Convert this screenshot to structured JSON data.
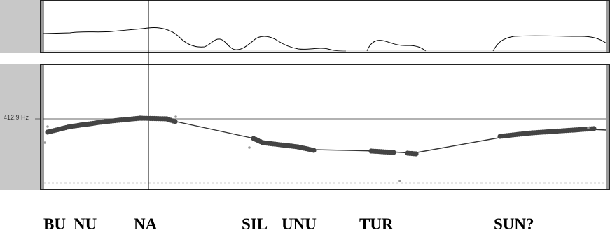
{
  "pitch_reference": {
    "label": "412.9 Hz"
  },
  "syllables": [
    {
      "id": "bu",
      "text": "BU"
    },
    {
      "id": "nu",
      "text": "NU"
    },
    {
      "id": "na",
      "text": "NA"
    },
    {
      "id": "sil",
      "text": "SIL"
    },
    {
      "id": "unu",
      "text": "UNU"
    },
    {
      "id": "tur",
      "text": "TUR"
    },
    {
      "id": "sun",
      "text": "SUN?"
    }
  ],
  "colors": {
    "gutter": "#c8c8c8",
    "pitch_points": "#444444",
    "stylized_line": "#333333",
    "waveform": "#000000"
  }
}
